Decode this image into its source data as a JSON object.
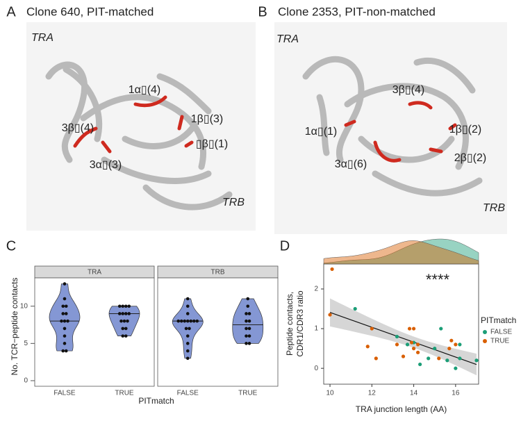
{
  "structures": [
    {
      "letter": "A",
      "title": "Clone 640, PIT-matched",
      "chains": [
        "TRA",
        "TRB"
      ],
      "loops": [
        "1α▯(4)",
        "3β▯(4)",
        "1β▯(3)",
        "▯β▯(1)",
        "3α▯(3)"
      ]
    },
    {
      "letter": "B",
      "title": "Clone 2353, PIT-non-matched",
      "chains": [
        "TRA",
        "TRB"
      ],
      "loops": [
        "3β▯(4)",
        "1α▯(1)",
        "1β▯(2)",
        "3α▯(6)",
        "2β▯(2)"
      ]
    }
  ],
  "chart_data": [
    {
      "type": "violin",
      "letter": "C",
      "y_label": "No. TCR−peptide contacts",
      "x_label": "PITmatch",
      "categories": [
        "FALSE",
        "TRUE"
      ],
      "color": "#8497d4",
      "ylim": [
        -0.75,
        13.8
      ],
      "yticks": [
        0,
        5,
        10
      ],
      "panels": [
        {
          "strip": "TRA",
          "groups": [
            {
              "values": [
                13,
                11,
                10,
                10,
                9,
                9,
                8,
                8,
                8,
                7,
                6,
                5,
                4,
                4
              ]
            },
            {
              "values": [
                10,
                10,
                10,
                10,
                9,
                9,
                9,
                9,
                8,
                8,
                8,
                7,
                7,
                6,
                6
              ]
            }
          ]
        },
        {
          "strip": "TRB",
          "groups": [
            {
              "values": [
                11,
                10,
                9,
                8,
                8,
                8,
                8,
                8,
                8,
                8,
                7,
                7,
                6,
                5,
                4,
                3
              ]
            },
            {
              "values": [
                11,
                10,
                9,
                9,
                8,
                8,
                7,
                7,
                6,
                6,
                5,
                5
              ]
            }
          ]
        }
      ]
    },
    {
      "type": "scatter",
      "letter": "D",
      "x_label": "TRA junction length (AA)",
      "y_label": [
        "Peptide contacts,",
        "CDR1/CDR3 ratio"
      ],
      "annotation": "****",
      "legend_title": "PITmatch",
      "xlim": [
        9.7,
        17.1
      ],
      "ylim": [
        -0.4,
        2.63
      ],
      "xticks": [
        10,
        12,
        14,
        16
      ],
      "yticks": [
        0,
        1,
        2
      ],
      "series": [
        {
          "name": "FALSE",
          "color": "#1b9e77",
          "x": [
            11.2,
            13.2,
            13.7,
            14,
            14.3,
            14.7,
            15,
            15.3,
            15.6,
            16,
            16.2,
            16.2,
            17
          ],
          "values": [
            1.5,
            0.8,
            0.6,
            0.65,
            0.1,
            0.25,
            0.5,
            1.0,
            0.2,
            0.0,
            0.25,
            0.6,
            0.2
          ]
        },
        {
          "name": "TRUE",
          "color": "#d95f02",
          "x": [
            10.1,
            10,
            11.8,
            12,
            12.2,
            13.2,
            13.5,
            13.8,
            14,
            14,
            13.9,
            14.2,
            15.2,
            15.7,
            15.8,
            16,
            14.2
          ],
          "values": [
            2.5,
            1.35,
            0.55,
            1.0,
            0.25,
            0.6,
            0.3,
            1.0,
            1.0,
            0.5,
            0.65,
            0.4,
            0.25,
            0.5,
            0.7,
            0.6,
            0.6
          ]
        }
      ]
    }
  ]
}
